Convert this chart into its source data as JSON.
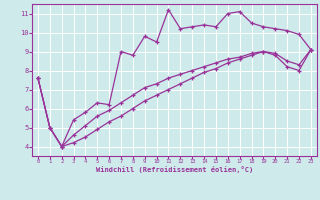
{
  "background_color": "#ceeaea",
  "grid_color": "#ffffff",
  "line_color": "#993399",
  "xlabel": "Windchill (Refroidissement éolien,°C)",
  "xlim": [
    -0.5,
    23.5
  ],
  "ylim": [
    3.5,
    11.5
  ],
  "yticks": [
    4,
    5,
    6,
    7,
    8,
    9,
    10,
    11
  ],
  "xticks": [
    0,
    1,
    2,
    3,
    4,
    5,
    6,
    7,
    8,
    9,
    10,
    11,
    12,
    13,
    14,
    15,
    16,
    17,
    18,
    19,
    20,
    21,
    22,
    23
  ],
  "series1_x": [
    0,
    1,
    2,
    3,
    4,
    5,
    6,
    7,
    8,
    9,
    10,
    11,
    12,
    13,
    14,
    15,
    16,
    17,
    18,
    19,
    20,
    21,
    22,
    23
  ],
  "series1_y": [
    7.6,
    5.0,
    4.0,
    5.4,
    5.8,
    6.3,
    6.2,
    9.0,
    8.8,
    9.8,
    9.5,
    11.2,
    10.2,
    10.3,
    10.4,
    10.3,
    11.0,
    11.1,
    10.5,
    10.3,
    10.2,
    10.1,
    9.9,
    9.1
  ],
  "series2_x": [
    0,
    1,
    2,
    3,
    4,
    5,
    6,
    7,
    8,
    9,
    10,
    11,
    12,
    13,
    14,
    15,
    16,
    17,
    18,
    19,
    20,
    21,
    22,
    23
  ],
  "series2_y": [
    7.6,
    5.0,
    4.0,
    4.6,
    5.1,
    5.6,
    5.9,
    6.3,
    6.7,
    7.1,
    7.3,
    7.6,
    7.8,
    8.0,
    8.2,
    8.4,
    8.6,
    8.7,
    8.9,
    9.0,
    8.9,
    8.5,
    8.3,
    9.1
  ],
  "series3_x": [
    0,
    1,
    2,
    3,
    4,
    5,
    6,
    7,
    8,
    9,
    10,
    11,
    12,
    13,
    14,
    15,
    16,
    17,
    18,
    19,
    20,
    21,
    22,
    23
  ],
  "series3_y": [
    7.6,
    5.0,
    4.0,
    4.2,
    4.5,
    4.9,
    5.3,
    5.6,
    6.0,
    6.4,
    6.7,
    7.0,
    7.3,
    7.6,
    7.9,
    8.1,
    8.4,
    8.6,
    8.8,
    9.0,
    8.8,
    8.2,
    8.0,
    9.1
  ]
}
